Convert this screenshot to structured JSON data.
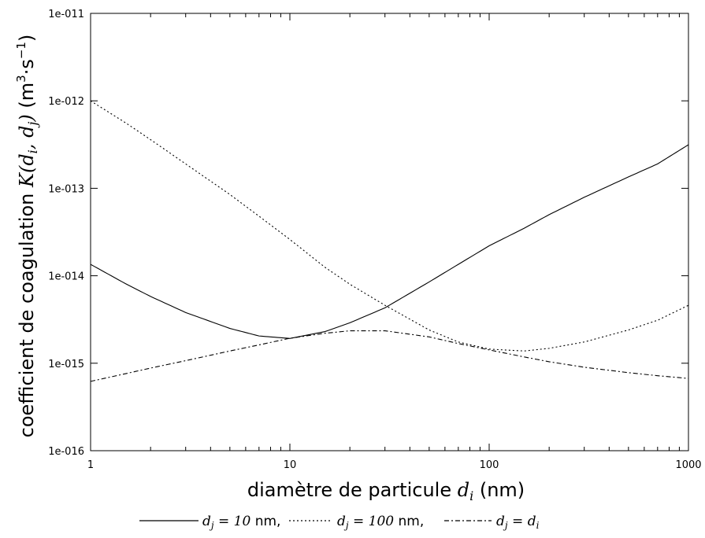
{
  "chart_data": {
    "type": "line",
    "xscale": "log",
    "yscale": "log",
    "xlim": [
      1,
      1000
    ],
    "ylim": [
      1e-16,
      1e-11
    ],
    "grid": false,
    "legend_position": "bottom",
    "xlabel": {
      "prefix": "diamètre de particule ",
      "var": "d",
      "sub": "i",
      "suffix": " (nm)"
    },
    "ylabel": {
      "prefix": "coefficient de coagulation ",
      "math": "K(d",
      "sub1": "i",
      "mid": ", d",
      "sub2": "j",
      "close": ")",
      "unit_prefix": " (m",
      "unit_exp1": "3",
      "unit_mid": "·s",
      "unit_exp2": "−1",
      "unit_suffix": ")"
    },
    "x_ticks": [
      {
        "value": 1,
        "label": "1"
      },
      {
        "value": 10,
        "label": "10"
      },
      {
        "value": 100,
        "label": "100"
      },
      {
        "value": 1000,
        "label": "1000"
      }
    ],
    "y_ticks": [
      {
        "value": 1e-16,
        "label": "1e-016"
      },
      {
        "value": 1e-15,
        "label": "1e-015"
      },
      {
        "value": 1e-14,
        "label": "1e-014"
      },
      {
        "value": 1e-13,
        "label": "1e-013"
      },
      {
        "value": 1e-12,
        "label": "1e-012"
      },
      {
        "value": 1e-11,
        "label": "1e-011"
      }
    ],
    "series": [
      {
        "key": "dj10",
        "style": "solid",
        "legend": {
          "var": "d",
          "sub": "j",
          "eq": " = 10",
          "unit": " nm,"
        },
        "x": [
          1,
          1.5,
          2,
          3,
          5,
          7,
          10,
          15,
          20,
          30,
          50,
          70,
          100,
          150,
          200,
          300,
          500,
          700,
          1000
        ],
        "y": [
          1.35e-14,
          8.1e-15,
          5.8e-15,
          3.8e-15,
          2.5e-15,
          2.05e-15,
          1.92e-15,
          2.3e-15,
          2.9e-15,
          4.3e-15,
          8.5e-15,
          1.35e-14,
          2.2e-14,
          3.5e-14,
          5e-14,
          7.9e-14,
          1.35e-13,
          1.9e-13,
          3.15e-13
        ]
      },
      {
        "key": "dj100",
        "style": "dotted",
        "legend": {
          "var": "d",
          "sub": "j",
          "eq": " = 100",
          "unit": " nm,"
        },
        "x": [
          1,
          1.5,
          2,
          3,
          5,
          7,
          10,
          15,
          20,
          30,
          50,
          70,
          100,
          150,
          200,
          300,
          500,
          700,
          1000
        ],
        "y": [
          1e-12,
          5.6e-13,
          3.6e-13,
          1.9e-13,
          8.5e-14,
          4.8e-14,
          2.6e-14,
          1.25e-14,
          8e-15,
          4.6e-15,
          2.4e-15,
          1.75e-15,
          1.45e-15,
          1.38e-15,
          1.48e-15,
          1.75e-15,
          2.4e-15,
          3.1e-15,
          4.6e-15
        ]
      },
      {
        "key": "djdi",
        "style": "dashdot",
        "legend": {
          "var": "d",
          "sub": "j",
          "eq": " = ",
          "var2": "d",
          "sub2": "i",
          "unit": ""
        },
        "x": [
          1,
          1.5,
          2,
          3,
          5,
          7,
          10,
          15,
          20,
          30,
          50,
          70,
          100,
          150,
          200,
          300,
          500,
          700,
          1000
        ],
        "y": [
          6.2e-16,
          7.6e-16,
          8.8e-16,
          1.07e-15,
          1.38e-15,
          1.62e-15,
          1.93e-15,
          2.2e-15,
          2.35e-15,
          2.35e-15,
          2e-15,
          1.68e-15,
          1.42e-15,
          1.18e-15,
          1.04e-15,
          9e-16,
          7.8e-16,
          7.2e-16,
          6.7e-16
        ]
      }
    ]
  }
}
